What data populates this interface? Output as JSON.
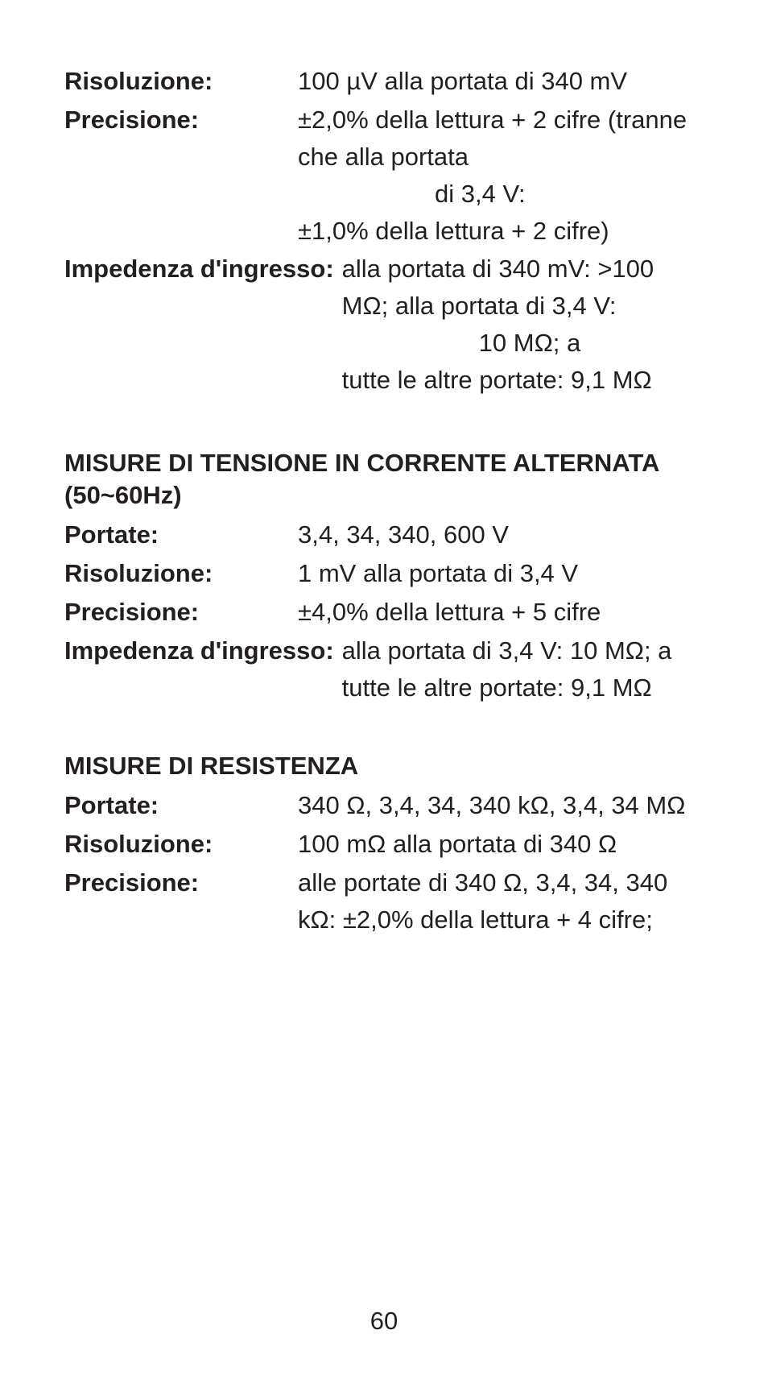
{
  "page_number": "60",
  "section1": {
    "rows": [
      {
        "label": "Risoluzione:",
        "value": "100 µV alla portata di 340 mV"
      },
      {
        "label": "Precisione:",
        "value_line1": "±2,0% della lettura + 2 cifre (tranne che alla portata",
        "value_indent": "di 3,4 V:",
        "value_line2": "±1,0% della lettura + 2 cifre)"
      },
      {
        "label": "Impedenza d'ingresso:",
        "wide": true,
        "value_line1": "alla portata di 340 mV: >100 MΩ; alla portata di 3,4 V:",
        "value_indent": "10 MΩ; a",
        "value_line2": "tutte le altre portate: 9,1 MΩ"
      }
    ]
  },
  "section2": {
    "heading": "MISURE DI TENSIONE IN CORRENTE ALTERNATA (50~60Hz)",
    "rows": [
      {
        "label": "Portate:",
        "value": "3,4, 34, 340, 600 V"
      },
      {
        "label": "Risoluzione:",
        "value": "1 mV alla portata di 3,4 V"
      },
      {
        "label": "Precisione:",
        "value": "±4,0% della lettura + 5 cifre"
      },
      {
        "label": "Impedenza d'ingresso:",
        "wide": true,
        "value": "alla portata di 3,4 V: 10 MΩ; a tutte le altre portate: 9,1 MΩ"
      }
    ]
  },
  "section3": {
    "heading": "MISURE DI RESISTENZA",
    "rows": [
      {
        "label": "Portate:",
        "value": "340 Ω, 3,4, 34, 340 kΩ, 3,4, 34 MΩ"
      },
      {
        "label": "Risoluzione:",
        "value": "100 mΩ alla portata di 340 Ω"
      },
      {
        "label": "Precisione:",
        "value": "alle portate di 340 Ω, 3,4, 34, 340 kΩ: ±2,0% della lettura + 4 cifre;"
      }
    ]
  }
}
